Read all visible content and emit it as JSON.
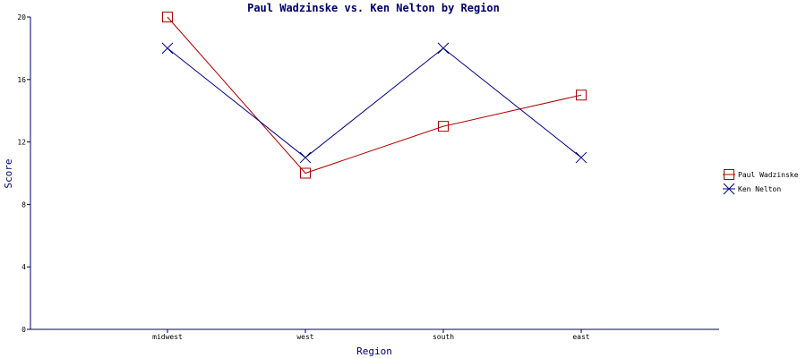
{
  "chart_data": {
    "type": "line",
    "title": "Paul Wadzinske vs. Ken Nelton by Region",
    "xlabel": "Region",
    "ylabel": "Score",
    "categories": [
      "midwest",
      "west",
      "south",
      "east"
    ],
    "ylim": [
      0,
      20
    ],
    "yticks": [
      0,
      4,
      8,
      12,
      16,
      20
    ],
    "grid": false,
    "legend_position": "right",
    "series": [
      {
        "name": "Paul Wadzinske",
        "values": [
          20,
          10,
          13,
          15
        ],
        "color": "#aa0000",
        "marker": "square"
      },
      {
        "name": "Ken Nelton",
        "values": [
          18,
          11,
          18,
          11
        ],
        "color": "#000080",
        "marker": "x"
      }
    ]
  },
  "colors": {
    "axis": "#000066",
    "title": "#000066"
  }
}
